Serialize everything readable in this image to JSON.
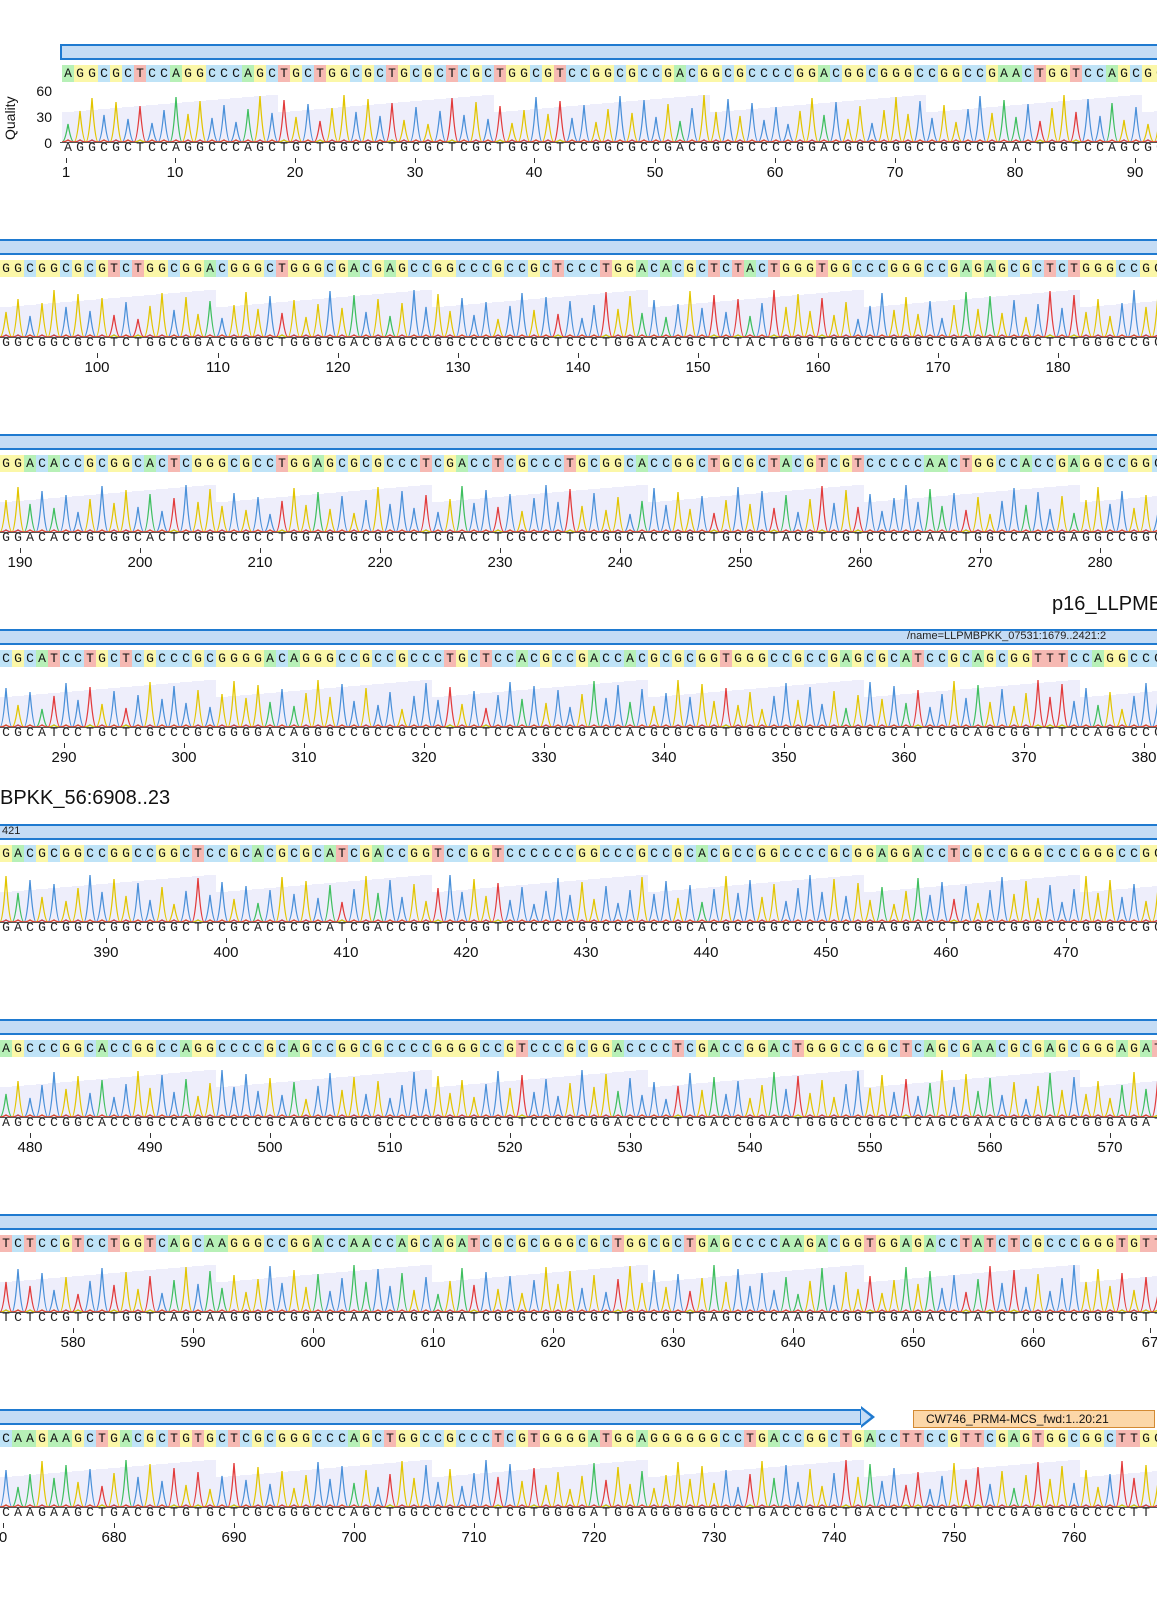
{
  "quality_axis": {
    "label": "Quality",
    "ticks": [
      "60",
      "30",
      "0"
    ]
  },
  "floating_labels": {
    "row3_right": "p16_LLPMB",
    "row4_left": "BPKK_56:6908..23"
  },
  "feature_labels": {
    "row4_name": "/name=LLPMBPKK_07531:1679..2421:2",
    "row5_name": "421"
  },
  "primer": {
    "label": "CW746_PRM4-MCS_fwd:1..20:21"
  },
  "colors": {
    "A": "#b7f0b7",
    "C": "#bfe3f7",
    "G": "#fbf7a8",
    "T": "#f6b9b3",
    "trace_A": "#3fbf5f",
    "trace_C": "#4a90d9",
    "trace_G": "#e2c500",
    "trace_T": "#e23b3b",
    "feature": "#c4dcf5",
    "feature_border": "#1f7ad0",
    "primer": "#fcd7a8"
  },
  "rows": [
    {
      "seq": "AGGCGCTCCAGGCCCAGCTGCTGGCGCTGCGCTCGCTGGCGTCCGGCGCCGACGGCGCCCCGGACGGCGGGCCGGCCGAACTGGTCCAGCGG",
      "ticks": [
        "1",
        "10",
        "20",
        "30",
        "40",
        "50",
        "60",
        "70",
        "80",
        "90"
      ]
    },
    {
      "seq": "GGCGGCGCGTCTGGCGGACGGGCTGGGCGACGAGCCGGCCCGCCGCTCCCTGGACACGCTCTACTGGGTGGCCCGGGCCGAGAGCGCTCTGGGCCGG",
      "ticks": [
        "100",
        "110",
        "120",
        "130",
        "140",
        "150",
        "160",
        "170",
        "180"
      ]
    },
    {
      "seq": "GGACACCGCGGCACTCGGGCGCCTGGAGCGCGCCCTCGACCTCGCCCTGCGGCACCGGCTGCGCTACGTCGTCCCCCAACTGGCCACCGAGGCCGGC",
      "ticks": [
        "190",
        "200",
        "210",
        "220",
        "230",
        "240",
        "250",
        "260",
        "270",
        "280"
      ]
    },
    {
      "seq": "CGCATCCTGCTCGCCCGCGGGGACAGGGCCGCCGCCCTGCTCCACGCCGACCACGCGCGGTGGGCCGCCGAGCGCATCCGCAGCGGTTTCCAGGCCC",
      "ticks": [
        "290",
        "300",
        "310",
        "320",
        "330",
        "340",
        "350",
        "360",
        "370",
        "380"
      ]
    },
    {
      "seq": "GACGCGGCCGGCCGGCTCCGCACGCGCATCGACCGGTCCGGTCCCCCCGGCCCGCCGCACGCCGGCCCCGCGGAGGACCTCGCCGGGCCCGGGCCGG",
      "ticks": [
        "390",
        "400",
        "410",
        "420",
        "430",
        "440",
        "450",
        "460",
        "470"
      ]
    },
    {
      "seq": "AGCCCGGCACCGGCCAGGCCCCGCAGCCGGCGCCCCGGGGCCGTCCCGCGGACCCCTCGACCGGACTGGGCCGGCTCAGCGAACGCGAGCGGGAGAT",
      "ticks": [
        "480",
        "490",
        "500",
        "510",
        "520",
        "530",
        "540",
        "550",
        "560",
        "570"
      ]
    },
    {
      "seq": "TCTCCGTCCTGGTCAGCAAGGGCCGGACCAACCAGCAGATCGCGCGGGCGCTGGCGCTGAGCCCCAAGACGGTGGAGACCTATCTCGCCCGGGTGTT",
      "ticks": [
        "580",
        "590",
        "600",
        "610",
        "620",
        "630",
        "640",
        "650",
        "660",
        "67"
      ]
    },
    {
      "seq": "CAAGAAGCTGACGCTGTGCTCGCGGGCCCAGCTGGCCGCCCTCGTGGGGATGGAGGGGGGCCTGACCGGCTGACCTTCCGTTCGAGTGGCGGCTTGG",
      "bottom_seq": "CAAGAAGCTGACGCTGTGCTCGCGGGCCCAGCTGGCCGCCCTCGTGGGGATGGAGGGGGGCCTGACCGGCTGACCTTCCGTTCCGAGGCGCCCCTT",
      "ticks": [
        "0",
        "680",
        "690",
        "700",
        "710",
        "720",
        "730",
        "740",
        "750",
        "760"
      ]
    }
  ]
}
